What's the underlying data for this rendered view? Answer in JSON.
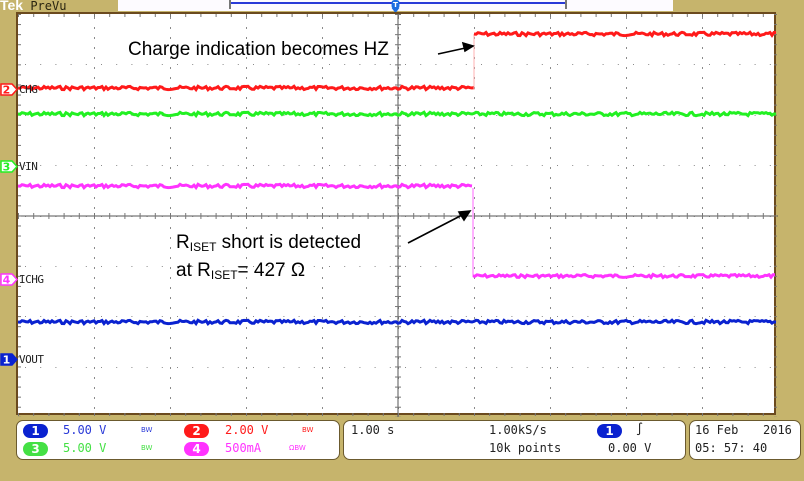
{
  "topbar": {
    "brand": "Tek",
    "mode": "PreVu"
  },
  "colors": {
    "ch1": "#0a22d0",
    "ch2": "#ff1a1a",
    "ch3": "#22f022",
    "ch4": "#ff33ff",
    "frame": "#c6b46c"
  },
  "channels": [
    {
      "number": "1",
      "label": "VOUT",
      "scale": "5.00 V",
      "bw": "BW",
      "color": "#0a22d0"
    },
    {
      "number": "2",
      "label": "CHG",
      "scale": "2.00 V",
      "bw": "BW",
      "color": "#ff1a1a"
    },
    {
      "number": "3",
      "label": "VIN",
      "scale": "5.00 V",
      "bw": "BW",
      "color": "#22f022"
    },
    {
      "number": "4",
      "label": "ICHG",
      "scale": "500mA",
      "bw": "ΩBW",
      "color": "#ff33ff"
    }
  ],
  "annotations": {
    "hz": "Charge indication becomes HZ",
    "riset_line1_R": "R",
    "riset_line1_sub": "ISET",
    "riset_line1_rest": " short is detected",
    "riset_line2_at": "at R",
    "riset_line2_sub": "ISET",
    "riset_line2_rest": "= 427 Ω"
  },
  "timebase": {
    "scale": "1.00 s",
    "sample_rate": "1.00kS/s",
    "record_length": "10k points"
  },
  "trigger": {
    "source": "1",
    "slope": "∫",
    "level": "0.00 V"
  },
  "datetime": {
    "date": "16 Feb",
    "year": "2016",
    "time": "05: 57: 40"
  }
}
